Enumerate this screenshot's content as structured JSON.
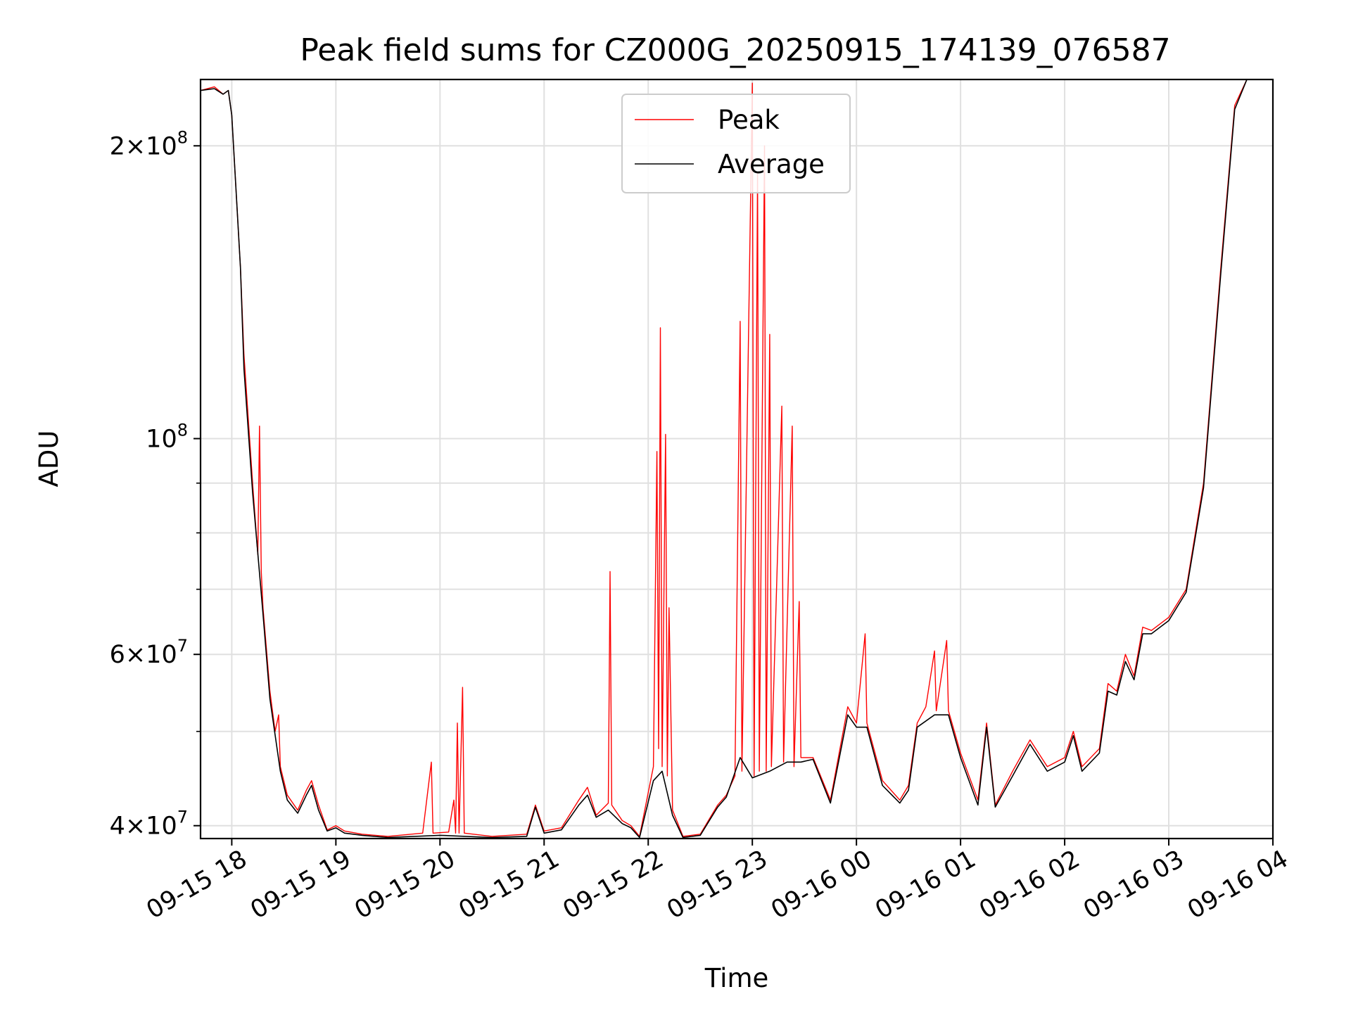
{
  "chart_data": {
    "type": "line",
    "title": "Peak field sums for CZ000G_20250915_174139_076587",
    "xlabel": "Time",
    "ylabel": "ADU",
    "y_scale": "log",
    "grid": true,
    "legend_position": "top-center",
    "x_range": [
      "2025-09-15 17:42",
      "2025-09-16 04:00"
    ],
    "ylim": [
      38800000,
      234000000
    ],
    "x_ticks": [
      "09-15 18",
      "09-15 19",
      "09-15 20",
      "09-15 21",
      "09-15 22",
      "09-15 23",
      "09-16 00",
      "09-16 01",
      "09-16 02",
      "09-16 03",
      "09-16 04"
    ],
    "y_ticks": [
      {
        "value": 40000000,
        "mant": "4",
        "exp": "7",
        "with_mant": true
      },
      {
        "value": 60000000,
        "mant": "6",
        "exp": "7",
        "with_mant": true
      },
      {
        "value": 100000000,
        "mant": "",
        "exp": "8",
        "with_mant": false
      },
      {
        "value": 200000000,
        "mant": "2",
        "exp": "8",
        "with_mant": true
      }
    ],
    "y_minor_ticks": [
      50000000,
      70000000,
      80000000,
      90000000
    ],
    "series": [
      {
        "name": "Peak",
        "color": "#ff0000",
        "points": [
          [
            "2025-09-15 17:42",
            228000000
          ],
          [
            "2025-09-15 17:50",
            230000000
          ],
          [
            "2025-09-15 17:55",
            226000000
          ],
          [
            "2025-09-15 17:58",
            228000000
          ],
          [
            "2025-09-15 18:00",
            215000000
          ],
          [
            "2025-09-15 18:05",
            150000000
          ],
          [
            "2025-09-15 18:07",
            122000000
          ],
          [
            "2025-09-15 18:08",
            115000000
          ],
          [
            "2025-09-15 18:12",
            90000000
          ],
          [
            "2025-09-15 18:15",
            76000000
          ],
          [
            "2025-09-15 18:16",
            103000000
          ],
          [
            "2025-09-15 18:17",
            73000000
          ],
          [
            "2025-09-15 18:18",
            67000000
          ],
          [
            "2025-09-15 18:22",
            55000000
          ],
          [
            "2025-09-15 18:25",
            50000000
          ],
          [
            "2025-09-15 18:27",
            52000000
          ],
          [
            "2025-09-15 18:28",
            46000000
          ],
          [
            "2025-09-15 18:32",
            43000000
          ],
          [
            "2025-09-15 18:38",
            41500000
          ],
          [
            "2025-09-15 18:43",
            43500000
          ],
          [
            "2025-09-15 18:46",
            44500000
          ],
          [
            "2025-09-15 18:50",
            42000000
          ],
          [
            "2025-09-15 18:55",
            39600000
          ],
          [
            "2025-09-15 19:00",
            40000000
          ],
          [
            "2025-09-15 19:05",
            39500000
          ],
          [
            "2025-09-15 19:15",
            39200000
          ],
          [
            "2025-09-15 19:30",
            39000000
          ],
          [
            "2025-09-15 19:50",
            39300000
          ],
          [
            "2025-09-15 19:55",
            46500000
          ],
          [
            "2025-09-15 19:56",
            39300000
          ],
          [
            "2025-09-15 20:05",
            39400000
          ],
          [
            "2025-09-15 20:08",
            42500000
          ],
          [
            "2025-09-15 20:09",
            39300000
          ],
          [
            "2025-09-15 20:10",
            51000000
          ],
          [
            "2025-09-15 20:11",
            39300000
          ],
          [
            "2025-09-15 20:13",
            55500000
          ],
          [
            "2025-09-15 20:14",
            39300000
          ],
          [
            "2025-09-15 20:30",
            39000000
          ],
          [
            "2025-09-15 20:50",
            39200000
          ],
          [
            "2025-09-15 20:55",
            42000000
          ],
          [
            "2025-09-15 21:00",
            39500000
          ],
          [
            "2025-09-15 21:10",
            39800000
          ],
          [
            "2025-09-15 21:20",
            42500000
          ],
          [
            "2025-09-15 21:25",
            43800000
          ],
          [
            "2025-09-15 21:30",
            41000000
          ],
          [
            "2025-09-15 21:37",
            42200000
          ],
          [
            "2025-09-15 21:38",
            73000000
          ],
          [
            "2025-09-15 21:39",
            42000000
          ],
          [
            "2025-09-15 21:45",
            40500000
          ],
          [
            "2025-09-15 21:50",
            40000000
          ],
          [
            "2025-09-15 21:55",
            39000000
          ],
          [
            "2025-09-15 22:03",
            46000000
          ],
          [
            "2025-09-15 22:05",
            97000000
          ],
          [
            "2025-09-15 22:06",
            48000000
          ],
          [
            "2025-09-15 22:07",
            130000000
          ],
          [
            "2025-09-15 22:08",
            46000000
          ],
          [
            "2025-09-15 22:10",
            101000000
          ],
          [
            "2025-09-15 22:11",
            45000000
          ],
          [
            "2025-09-15 22:12",
            67000000
          ],
          [
            "2025-09-15 22:14",
            41500000
          ],
          [
            "2025-09-15 22:20",
            39000000
          ],
          [
            "2025-09-15 22:30",
            39200000
          ],
          [
            "2025-09-15 22:40",
            42000000
          ],
          [
            "2025-09-15 22:45",
            43000000
          ],
          [
            "2025-09-15 22:50",
            45000000
          ],
          [
            "2025-09-15 22:53",
            132000000
          ],
          [
            "2025-09-15 22:54",
            45500000
          ],
          [
            "2025-09-15 23:00",
            232000000
          ],
          [
            "2025-09-15 23:01",
            45000000
          ],
          [
            "2025-09-15 23:03",
            188000000
          ],
          [
            "2025-09-15 23:04",
            45500000
          ],
          [
            "2025-09-15 23:07",
            200000000
          ],
          [
            "2025-09-15 23:08",
            45500000
          ],
          [
            "2025-09-15 23:10",
            128000000
          ],
          [
            "2025-09-15 23:11",
            46000000
          ],
          [
            "2025-09-15 23:17",
            108000000
          ],
          [
            "2025-09-15 23:18",
            46500000
          ],
          [
            "2025-09-15 23:23",
            103000000
          ],
          [
            "2025-09-15 23:24",
            46000000
          ],
          [
            "2025-09-15 23:27",
            68000000
          ],
          [
            "2025-09-15 23:28",
            47000000
          ],
          [
            "2025-09-15 23:35",
            47000000
          ],
          [
            "2025-09-15 23:45",
            42500000
          ],
          [
            "2025-09-15 23:55",
            53000000
          ],
          [
            "2025-09-16 00:00",
            51000000
          ],
          [
            "2025-09-16 00:05",
            63000000
          ],
          [
            "2025-09-16 00:06",
            51000000
          ],
          [
            "2025-09-16 00:15",
            44500000
          ],
          [
            "2025-09-16 00:25",
            42500000
          ],
          [
            "2025-09-16 00:30",
            44000000
          ],
          [
            "2025-09-16 00:35",
            51000000
          ],
          [
            "2025-09-16 00:40",
            53000000
          ],
          [
            "2025-09-16 00:45",
            60500000
          ],
          [
            "2025-09-16 00:46",
            52500000
          ],
          [
            "2025-09-16 00:52",
            62000000
          ],
          [
            "2025-09-16 00:53",
            52500000
          ],
          [
            "2025-09-16 01:00",
            47500000
          ],
          [
            "2025-09-16 01:10",
            42500000
          ],
          [
            "2025-09-16 01:15",
            51000000
          ],
          [
            "2025-09-16 01:20",
            42000000
          ],
          [
            "2025-09-16 01:30",
            45500000
          ],
          [
            "2025-09-16 01:40",
            49000000
          ],
          [
            "2025-09-16 01:50",
            46000000
          ],
          [
            "2025-09-16 02:00",
            47000000
          ],
          [
            "2025-09-16 02:05",
            50000000
          ],
          [
            "2025-09-16 02:10",
            46000000
          ],
          [
            "2025-09-16 02:20",
            48000000
          ],
          [
            "2025-09-16 02:25",
            56000000
          ],
          [
            "2025-09-16 02:30",
            55000000
          ],
          [
            "2025-09-16 02:35",
            60000000
          ],
          [
            "2025-09-16 02:40",
            57000000
          ],
          [
            "2025-09-16 02:45",
            64000000
          ],
          [
            "2025-09-16 02:50",
            63500000
          ],
          [
            "2025-09-16 03:00",
            65500000
          ],
          [
            "2025-09-16 03:10",
            70000000
          ],
          [
            "2025-09-16 03:20",
            90000000
          ],
          [
            "2025-09-16 03:30",
            150000000
          ],
          [
            "2025-09-16 03:38",
            220000000
          ],
          [
            "2025-09-16 03:45",
            234000000
          ],
          [
            "2025-09-16 04:00",
            234000000
          ]
        ]
      },
      {
        "name": "Average",
        "color": "#000000",
        "points": [
          [
            "2025-09-15 17:42",
            228000000
          ],
          [
            "2025-09-15 17:50",
            229000000
          ],
          [
            "2025-09-15 17:55",
            226000000
          ],
          [
            "2025-09-15 17:58",
            228000000
          ],
          [
            "2025-09-15 18:00",
            215000000
          ],
          [
            "2025-09-15 18:05",
            150000000
          ],
          [
            "2025-09-15 18:07",
            118000000
          ],
          [
            "2025-09-15 18:12",
            88000000
          ],
          [
            "2025-09-15 18:18",
            66000000
          ],
          [
            "2025-09-15 18:22",
            54000000
          ],
          [
            "2025-09-15 18:28",
            45500000
          ],
          [
            "2025-09-15 18:32",
            42500000
          ],
          [
            "2025-09-15 18:38",
            41200000
          ],
          [
            "2025-09-15 18:43",
            43000000
          ],
          [
            "2025-09-15 18:46",
            44000000
          ],
          [
            "2025-09-15 18:50",
            41500000
          ],
          [
            "2025-09-15 18:55",
            39500000
          ],
          [
            "2025-09-15 19:00",
            39800000
          ],
          [
            "2025-09-15 19:05",
            39300000
          ],
          [
            "2025-09-15 19:15",
            39100000
          ],
          [
            "2025-09-15 19:30",
            38900000
          ],
          [
            "2025-09-15 20:00",
            39100000
          ],
          [
            "2025-09-15 20:30",
            38900000
          ],
          [
            "2025-09-15 20:50",
            39000000
          ],
          [
            "2025-09-15 20:55",
            41800000
          ],
          [
            "2025-09-15 21:00",
            39300000
          ],
          [
            "2025-09-15 21:10",
            39600000
          ],
          [
            "2025-09-15 21:20",
            42000000
          ],
          [
            "2025-09-15 21:25",
            43000000
          ],
          [
            "2025-09-15 21:30",
            40800000
          ],
          [
            "2025-09-15 21:37",
            41500000
          ],
          [
            "2025-09-15 21:45",
            40200000
          ],
          [
            "2025-09-15 21:50",
            39800000
          ],
          [
            "2025-09-15 21:55",
            38900000
          ],
          [
            "2025-09-15 22:03",
            44500000
          ],
          [
            "2025-09-15 22:08",
            45500000
          ],
          [
            "2025-09-15 22:14",
            41000000
          ],
          [
            "2025-09-15 22:20",
            38900000
          ],
          [
            "2025-09-15 22:30",
            39100000
          ],
          [
            "2025-09-15 22:40",
            41800000
          ],
          [
            "2025-09-15 22:45",
            42800000
          ],
          [
            "2025-09-15 22:53",
            47000000
          ],
          [
            "2025-09-15 23:00",
            44800000
          ],
          [
            "2025-09-15 23:10",
            45500000
          ],
          [
            "2025-09-15 23:20",
            46500000
          ],
          [
            "2025-09-15 23:28",
            46500000
          ],
          [
            "2025-09-15 23:35",
            46800000
          ],
          [
            "2025-09-15 23:45",
            42200000
          ],
          [
            "2025-09-15 23:55",
            52000000
          ],
          [
            "2025-09-16 00:00",
            50500000
          ],
          [
            "2025-09-16 00:06",
            50500000
          ],
          [
            "2025-09-16 00:15",
            44000000
          ],
          [
            "2025-09-16 00:25",
            42200000
          ],
          [
            "2025-09-16 00:30",
            43500000
          ],
          [
            "2025-09-16 00:35",
            50500000
          ],
          [
            "2025-09-16 00:45",
            52000000
          ],
          [
            "2025-09-16 00:53",
            52000000
          ],
          [
            "2025-09-16 01:00",
            47000000
          ],
          [
            "2025-09-16 01:10",
            42000000
          ],
          [
            "2025-09-16 01:15",
            50500000
          ],
          [
            "2025-09-16 01:20",
            41800000
          ],
          [
            "2025-09-16 01:30",
            45000000
          ],
          [
            "2025-09-16 01:40",
            48500000
          ],
          [
            "2025-09-16 01:50",
            45500000
          ],
          [
            "2025-09-16 02:00",
            46500000
          ],
          [
            "2025-09-16 02:05",
            49500000
          ],
          [
            "2025-09-16 02:10",
            45500000
          ],
          [
            "2025-09-16 02:20",
            47500000
          ],
          [
            "2025-09-16 02:25",
            55000000
          ],
          [
            "2025-09-16 02:30",
            54500000
          ],
          [
            "2025-09-16 02:35",
            59000000
          ],
          [
            "2025-09-16 02:40",
            56500000
          ],
          [
            "2025-09-16 02:45",
            63000000
          ],
          [
            "2025-09-16 02:50",
            63000000
          ],
          [
            "2025-09-16 03:00",
            65000000
          ],
          [
            "2025-09-16 03:10",
            69500000
          ],
          [
            "2025-09-16 03:20",
            89000000
          ],
          [
            "2025-09-16 03:30",
            148000000
          ],
          [
            "2025-09-16 03:38",
            218000000
          ],
          [
            "2025-09-16 03:45",
            234000000
          ],
          [
            "2025-09-16 04:00",
            234000000
          ]
        ]
      }
    ]
  }
}
